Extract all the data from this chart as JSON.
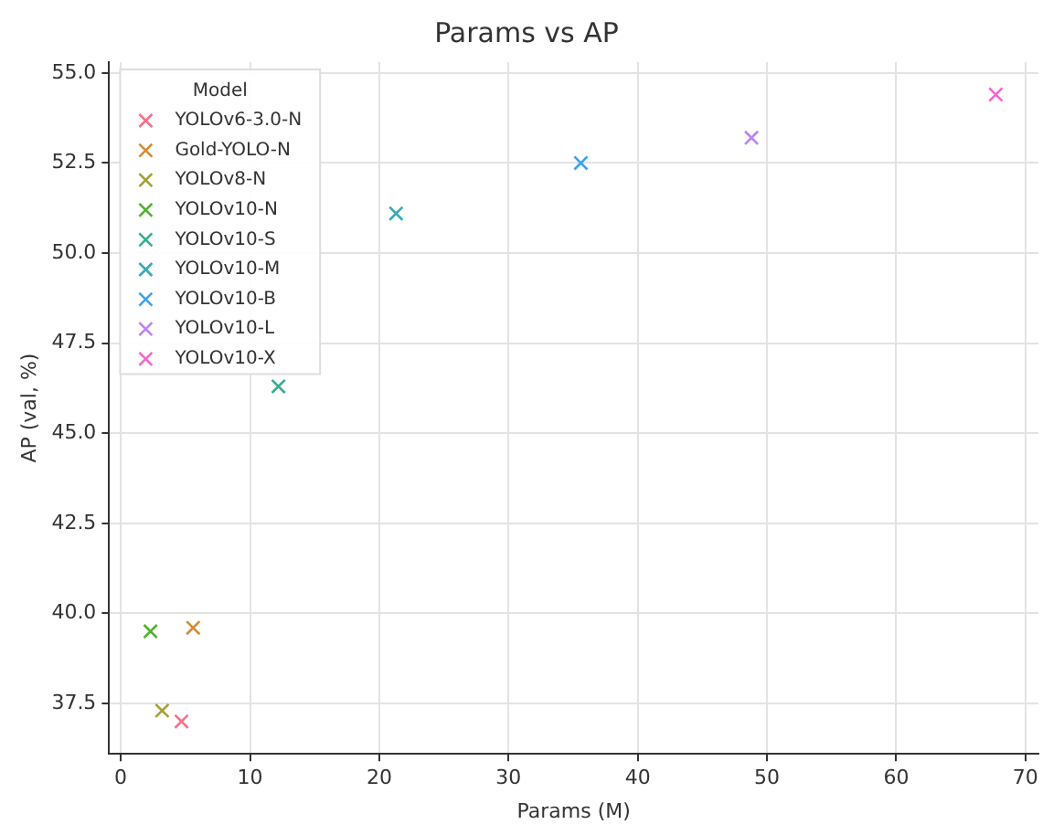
{
  "chart_data": {
    "type": "scatter",
    "title": "Params vs AP",
    "xlabel": "Params (M)",
    "ylabel": "AP (val, %)",
    "legend_title": "Model",
    "legend": "top left",
    "grid": true,
    "marker": "cross",
    "xlim": [
      -0.9,
      71
    ],
    "xticks": [
      0,
      10,
      20,
      30,
      40,
      50,
      60,
      70
    ],
    "ylim": [
      36.1,
      55.3
    ],
    "yticks": [
      {
        "value": 37.5,
        "label": "37.5"
      },
      {
        "value": 40,
        "label": "40.0"
      },
      {
        "value": 42.5,
        "label": "42.5"
      },
      {
        "value": 45,
        "label": "45.0"
      },
      {
        "value": 47.5,
        "label": "47.5"
      },
      {
        "value": 50,
        "label": "50.0"
      },
      {
        "value": 52.5,
        "label": "52.5"
      },
      {
        "value": 55,
        "label": "55.0"
      }
    ],
    "series": [
      {
        "name": "YOLOv6-3.0-N",
        "color": "#f77189",
        "x": [
          4.7
        ],
        "values": [
          37.0
        ]
      },
      {
        "name": "Gold-YOLO-N",
        "color": "#d58c32",
        "x": [
          5.6
        ],
        "values": [
          39.6
        ]
      },
      {
        "name": "YOLOv8-N",
        "color": "#a4a031",
        "x": [
          3.2
        ],
        "values": [
          37.3
        ]
      },
      {
        "name": "YOLOv10-N",
        "color": "#50b131",
        "x": [
          2.3
        ],
        "values": [
          39.5
        ]
      },
      {
        "name": "YOLOv10-S",
        "color": "#34ae91",
        "x": [
          12.2
        ],
        "values": [
          46.3
        ]
      },
      {
        "name": "YOLOv10-M",
        "color": "#37abb5",
        "x": [
          21.3
        ],
        "values": [
          51.1
        ]
      },
      {
        "name": "YOLOv10-B",
        "color": "#3ba3ec",
        "x": [
          35.6
        ],
        "values": [
          52.5
        ]
      },
      {
        "name": "YOLOv10-L",
        "color": "#bb83f4",
        "x": [
          48.8
        ],
        "values": [
          53.2
        ]
      },
      {
        "name": "YOLOv10-X",
        "color": "#f564d4",
        "x": [
          67.7
        ],
        "values": [
          54.4
        ]
      }
    ]
  }
}
